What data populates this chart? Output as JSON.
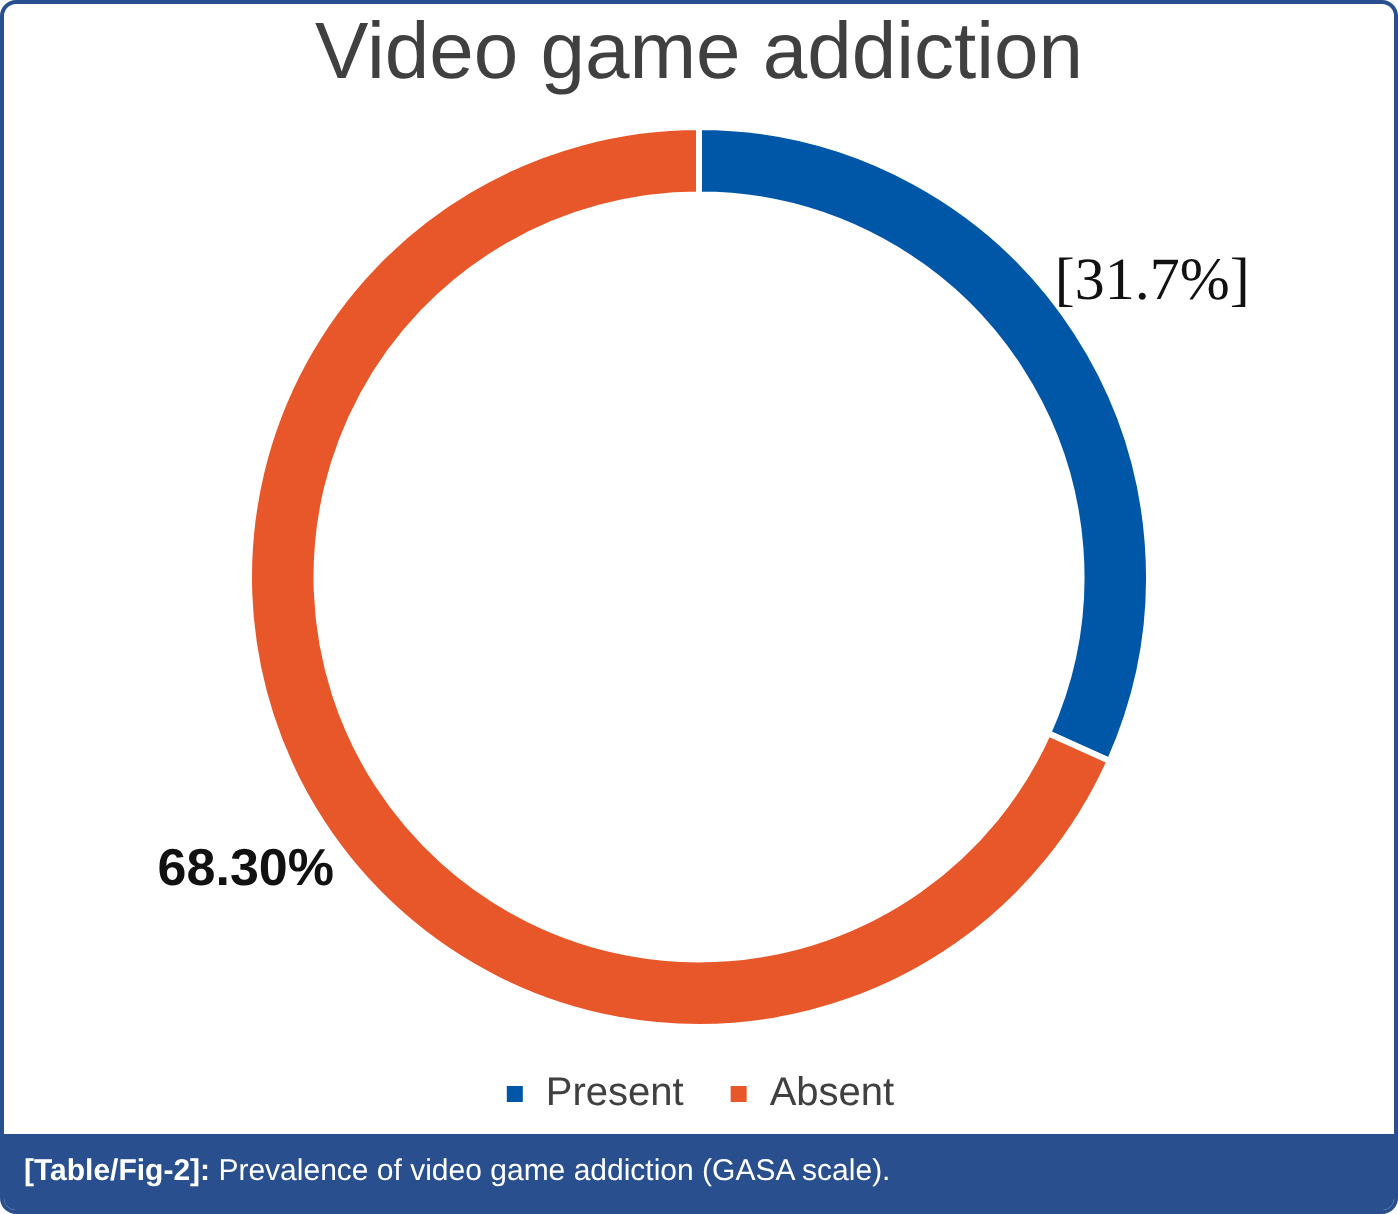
{
  "chart_data": {
    "type": "donut",
    "title": "Video game addiction",
    "categories": [
      "Present",
      "Absent"
    ],
    "values": [
      31.7,
      68.3
    ],
    "colors": [
      "#0057a8",
      "#e8572a"
    ],
    "value_labels": [
      "[31.7%]",
      "68.30%"
    ],
    "legend": "bottom",
    "annotations": [
      "[Table/Fig-2]: Prevalence of video game addiction (GASA scale)."
    ]
  }
}
